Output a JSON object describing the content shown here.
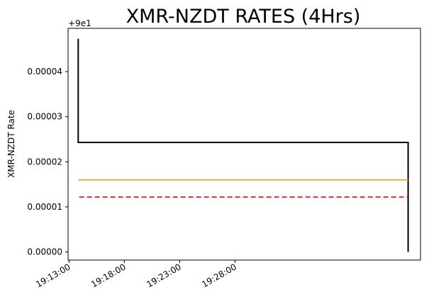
{
  "chart_data": {
    "type": "line",
    "title": "XMR-NZDT RATES (4Hrs)",
    "xlabel": "",
    "ylabel": "XMR-NZDT Rate",
    "y_offset_label": "+9e1",
    "x_ticks": [
      "19:13:00",
      "19:18:00",
      "19:23:00",
      "19:28:00"
    ],
    "y_ticks": [
      "0.00000",
      "0.00001",
      "0.00002",
      "0.00003",
      "0.00004"
    ],
    "x_time_seconds_from_1913": {
      "axis_min": -5,
      "axis_max": 1905
    },
    "y_axis_range_offset": [
      -1.8e-06,
      4.96e-05
    ],
    "grid": false,
    "series": [
      {
        "color": "#000000",
        "style": "solid",
        "points": [
          [
            50,
            4.73e-05
          ],
          [
            50,
            2.43e-05
          ],
          [
            1838,
            2.43e-05
          ],
          [
            1838,
            0.0
          ]
        ]
      },
      {
        "color": "#ffa500",
        "style": "solid",
        "points": [
          [
            50,
            1.6e-05
          ],
          [
            1838,
            1.6e-05
          ]
        ]
      },
      {
        "color": "#ff0000",
        "style": "dashed",
        "points": [
          [
            55,
            1.22e-05
          ],
          [
            1838,
            1.22e-05
          ]
        ]
      }
    ]
  }
}
